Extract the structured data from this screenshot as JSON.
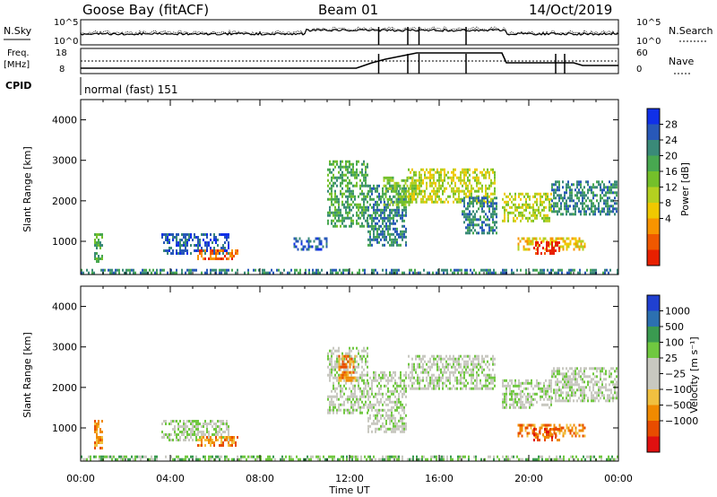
{
  "header": {
    "station": "Goose Bay (fitACF)",
    "beam": "Beam 01",
    "date": "14/Oct/2019"
  },
  "summary_panels": {
    "nsky_label": "N.Sky",
    "nsearch_label": "N.Search",
    "freq_label_line1": "Freq.",
    "freq_label_line2": "[MHz]",
    "nave_label": "Nave",
    "cpid_label": "CPID",
    "cpid_value": "normal (fast) 151",
    "noise_left_ticks": [
      "10^5",
      "10^0"
    ],
    "noise_right_ticks": [
      "10^5",
      "10^0"
    ],
    "freq_ticks": [
      "18",
      "8"
    ],
    "nave_ticks": [
      "60",
      "0"
    ]
  },
  "chart_data": [
    {
      "type": "heatmap",
      "panel": "power",
      "ylabel": "Slant Range [km]",
      "xlabel": "",
      "ylim": [
        180,
        4500
      ],
      "yticks": [
        1000,
        2000,
        3000,
        4000
      ],
      "xlim": [
        "00:00",
        "24:00"
      ],
      "colorbar_label": "Power [dB]",
      "colorbar_ticks": [
        "28",
        "24",
        "20",
        "16",
        "12",
        "8",
        "4"
      ],
      "colorbar_colors": [
        "#1030e8",
        "#2858b8",
        "#3a8a78",
        "#48a850",
        "#74c02a",
        "#b4d020",
        "#f0c800",
        "#f89400",
        "#f05800",
        "#e82000"
      ],
      "echo_regions": [
        {
          "t0": 0.0,
          "t1": 24.0,
          "r0": 200,
          "r1": 320,
          "level": 2
        },
        {
          "t0": 0.6,
          "t1": 1.0,
          "r0": 500,
          "r1": 1200,
          "level": 3
        },
        {
          "t0": 3.6,
          "t1": 6.6,
          "r0": 700,
          "r1": 1200,
          "level": 1
        },
        {
          "t0": 5.2,
          "t1": 7.0,
          "r0": 550,
          "r1": 800,
          "level": 8
        },
        {
          "t0": 9.5,
          "t1": 11.0,
          "r0": 800,
          "r1": 1100,
          "level": 1
        },
        {
          "t0": 11.0,
          "t1": 12.8,
          "r0": 1400,
          "r1": 3000,
          "level": 3
        },
        {
          "t0": 12.8,
          "t1": 14.5,
          "r0": 900,
          "r1": 2400,
          "level": 2
        },
        {
          "t0": 13.5,
          "t1": 15.0,
          "r0": 1900,
          "r1": 2600,
          "level": 4
        },
        {
          "t0": 14.6,
          "t1": 18.5,
          "r0": 2000,
          "r1": 2800,
          "level": 5
        },
        {
          "t0": 17.0,
          "t1": 18.6,
          "r0": 1200,
          "r1": 2100,
          "level": 2
        },
        {
          "t0": 18.8,
          "t1": 21.0,
          "r0": 1500,
          "r1": 2200,
          "level": 5
        },
        {
          "t0": 19.5,
          "t1": 22.5,
          "r0": 800,
          "r1": 1100,
          "level": 6
        },
        {
          "t0": 20.2,
          "t1": 21.4,
          "r0": 700,
          "r1": 1000,
          "level": 9
        },
        {
          "t0": 21.0,
          "t1": 23.9,
          "r0": 1700,
          "r1": 2500,
          "level": 2
        }
      ]
    },
    {
      "type": "heatmap",
      "panel": "velocity",
      "ylabel": "Slant Range [km]",
      "xlabel": "Time UT",
      "ylim": [
        180,
        4500
      ],
      "yticks": [
        1000,
        2000,
        3000,
        4000
      ],
      "xlim": [
        "00:00",
        "24:00"
      ],
      "xticks": [
        "00:00",
        "04:00",
        "08:00",
        "12:00",
        "16:00",
        "20:00",
        "00:00"
      ],
      "colorbar_label": "Velocity [m s⁻¹]",
      "colorbar_ticks": [
        "1000",
        "500",
        "100",
        "25",
        "−25",
        "−100",
        "−500",
        "−1000"
      ],
      "colorbar_colors": [
        "#2040d0",
        "#2c70b0",
        "#3a9a50",
        "#70c840",
        "#c8c8c0",
        "#c8c8c0",
        "#f0c040",
        "#f08a00",
        "#e84c00",
        "#e01010"
      ],
      "echo_regions": [
        {
          "t0": 0.0,
          "t1": 24.0,
          "r0": 200,
          "r1": 320,
          "level": 3
        },
        {
          "t0": 0.6,
          "t1": 1.0,
          "r0": 500,
          "r1": 1200,
          "level": 7
        },
        {
          "t0": 3.6,
          "t1": 6.6,
          "r0": 700,
          "r1": 1200,
          "level": 4
        },
        {
          "t0": 5.2,
          "t1": 7.0,
          "r0": 550,
          "r1": 800,
          "level": 7
        },
        {
          "t0": 11.0,
          "t1": 12.8,
          "r0": 1400,
          "r1": 3000,
          "level": 4
        },
        {
          "t0": 11.5,
          "t1": 12.3,
          "r0": 2200,
          "r1": 2800,
          "level": 7
        },
        {
          "t0": 12.8,
          "t1": 14.5,
          "r0": 900,
          "r1": 2400,
          "level": 4
        },
        {
          "t0": 14.6,
          "t1": 18.5,
          "r0": 2000,
          "r1": 2800,
          "level": 4
        },
        {
          "t0": 18.8,
          "t1": 21.0,
          "r0": 1500,
          "r1": 2200,
          "level": 4
        },
        {
          "t0": 19.5,
          "t1": 22.5,
          "r0": 800,
          "r1": 1100,
          "level": 7
        },
        {
          "t0": 20.2,
          "t1": 21.4,
          "r0": 700,
          "r1": 1000,
          "level": 8
        },
        {
          "t0": 21.0,
          "t1": 23.9,
          "r0": 1700,
          "r1": 2500,
          "level": 4
        }
      ]
    }
  ]
}
